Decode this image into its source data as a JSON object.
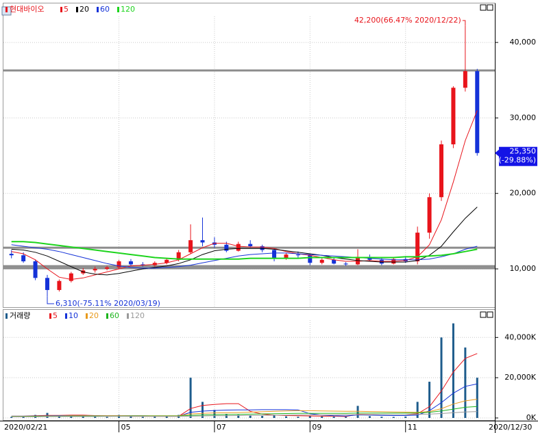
{
  "chart_data": [
    {
      "type": "candlestick",
      "title": "현대바이오",
      "open": [
        12000,
        11800,
        11000,
        8800,
        7200,
        8400,
        9400,
        9800,
        10000,
        10200,
        11000,
        10600,
        10500,
        10800,
        11200,
        12200,
        13800,
        13500,
        13200,
        12400,
        13300,
        13000,
        12500,
        11400,
        11900,
        11800,
        10800,
        11200,
        10700,
        10600,
        11600,
        11200,
        10700,
        11300,
        11000,
        14800,
        19500,
        26500,
        34000,
        36200
      ],
      "high": [
        12500,
        12200,
        11200,
        9200,
        8600,
        9600,
        10100,
        10300,
        10400,
        11200,
        11300,
        10900,
        11000,
        11400,
        12500,
        15900,
        16800,
        14200,
        13600,
        13600,
        13800,
        13200,
        12700,
        12100,
        12300,
        12000,
        11400,
        11500,
        10900,
        12600,
        11900,
        11400,
        11500,
        11700,
        15600,
        20000,
        27000,
        34200,
        42200,
        36500
      ],
      "low": [
        11400,
        10800,
        8500,
        6310,
        7000,
        8200,
        9200,
        9500,
        9800,
        10000,
        10400,
        10300,
        10300,
        10600,
        11000,
        12000,
        13000,
        12800,
        12200,
        12300,
        12800,
        12200,
        11000,
        11200,
        11500,
        10500,
        10600,
        10600,
        10400,
        10500,
        11000,
        10500,
        10600,
        10800,
        10600,
        14000,
        19000,
        26000,
        33500,
        25000
      ],
      "close": [
        11800,
        11000,
        8800,
        7200,
        8400,
        9400,
        9800,
        10000,
        10200,
        11000,
        10600,
        10500,
        10800,
        11200,
        12200,
        13800,
        13500,
        13200,
        12400,
        13300,
        13000,
        12500,
        11400,
        11900,
        11800,
        10800,
        11200,
        10700,
        10600,
        11600,
        11200,
        10700,
        11300,
        11000,
        14800,
        19500,
        26500,
        34000,
        36200,
        25350
      ],
      "up_color": "#e8141b",
      "down_color": "#1432d8",
      "series": [
        {
          "name": "5",
          "color": "#e8141b",
          "values": [
            12300,
            12000,
            11200,
            10000,
            8900,
            8600,
            8800,
            9200,
            9600,
            10000,
            10400,
            10500,
            10600,
            10800,
            11200,
            12000,
            12800,
            13400,
            13400,
            13000,
            12900,
            12900,
            12700,
            12300,
            12000,
            11800,
            11500,
            11200,
            11000,
            11000,
            11100,
            11000,
            11000,
            11100,
            11600,
            13200,
            16500,
            21500,
            27000,
            31000
          ]
        },
        {
          "name": "20",
          "color": "#000000",
          "values": [
            12600,
            12500,
            12200,
            11700,
            11000,
            10300,
            9600,
            9300,
            9200,
            9400,
            9700,
            10000,
            10200,
            10400,
            10700,
            11200,
            11900,
            12400,
            12600,
            12700,
            12700,
            12700,
            12600,
            12400,
            12200,
            12000,
            11800,
            11500,
            11300,
            11100,
            11000,
            10900,
            10900,
            10900,
            11100,
            11800,
            13000,
            14900,
            16700,
            18200
          ]
        },
        {
          "name": "60",
          "color": "#1432d8",
          "values": [
            13200,
            13000,
            12800,
            12600,
            12300,
            11900,
            11500,
            11100,
            10700,
            10400,
            10200,
            10100,
            10100,
            10200,
            10300,
            10500,
            10800,
            11100,
            11400,
            11700,
            11900,
            12000,
            12100,
            12100,
            12000,
            11900,
            11800,
            11700,
            11600,
            11500,
            11400,
            11300,
            11200,
            11200,
            11200,
            11300,
            11600,
            12000,
            12600,
            13000
          ]
        },
        {
          "name": "120",
          "color": "#1cd41c",
          "values": [
            13600,
            13600,
            13500,
            13300,
            13100,
            12900,
            12700,
            12500,
            12300,
            12100,
            11900,
            11700,
            11500,
            11400,
            11300,
            11300,
            11300,
            11300,
            11300,
            11300,
            11400,
            11400,
            11400,
            11400,
            11400,
            11500,
            11500,
            11500,
            11500,
            11500,
            11500,
            11500,
            11500,
            11600,
            11600,
            11700,
            11800,
            12000,
            12300,
            12600
          ]
        }
      ],
      "ylim": [
        4840,
        44900
      ],
      "yticks": [
        {
          "value": 10000,
          "label": "10,000"
        },
        {
          "value": 20000,
          "label": "20,000"
        },
        {
          "value": 30000,
          "label": "30,000"
        },
        {
          "value": 40000,
          "label": "40,000"
        }
      ],
      "grid": true,
      "hlines": [
        36290,
        12805,
        10360,
        10090
      ],
      "hline_color": "#8c8c8c",
      "annotations": [
        {
          "value": 42200,
          "label": "42,200(66.47% 2020/12/22)",
          "color": "#e8141b"
        },
        {
          "value": 6310,
          "label": "6,310(-75.11% 2020/03/19)",
          "color": "#1432d8"
        }
      ],
      "last_price": {
        "value": 25350,
        "label": "25,350",
        "change": "(-29.88%)"
      }
    },
    {
      "type": "bar",
      "title": "거래량",
      "categories": [
        "2020/02/21",
        null,
        null,
        null,
        null,
        null,
        null,
        null,
        null,
        "05",
        null,
        null,
        null,
        null,
        null,
        null,
        null,
        "07",
        null,
        null,
        null,
        null,
        null,
        null,
        null,
        "09",
        null,
        null,
        null,
        null,
        null,
        null,
        null,
        "11",
        null,
        null,
        null,
        null,
        null,
        "2020/12/30"
      ],
      "values": [
        500,
        800,
        1500,
        2500,
        1200,
        1000,
        800,
        600,
        500,
        1500,
        700,
        500,
        600,
        800,
        1500,
        20000,
        8000,
        4000,
        2000,
        1500,
        1200,
        1000,
        1500,
        800,
        600,
        1000,
        700,
        600,
        500,
        6000,
        900,
        600,
        500,
        700,
        8000,
        18000,
        40000,
        47000,
        35000,
        20000
      ],
      "color": "#1e5c8c",
      "series": [
        {
          "name": "5",
          "color": "#e8141b",
          "values": [
            900,
            900,
            1100,
            1300,
            1300,
            1400,
            1400,
            1200,
            800,
            900,
            800,
            800,
            800,
            800,
            800,
            4700,
            6200,
            6700,
            7100,
            7100,
            3300,
            1900,
            1400,
            1200,
            1100,
            1000,
            900,
            900,
            700,
            1800,
            1700,
            1700,
            1700,
            1700,
            2100,
            5600,
            13400,
            22800,
            29600,
            32000
          ]
        },
        {
          "name": "10",
          "color": "#1432d8",
          "values": [
            900,
            900,
            1000,
            1100,
            1200,
            1200,
            1200,
            1200,
            1100,
            1100,
            1100,
            1100,
            1000,
            900,
            900,
            2800,
            3400,
            3700,
            3900,
            4000,
            4000,
            4100,
            4100,
            4100,
            4000,
            2100,
            1400,
            1100,
            1000,
            1500,
            1400,
            1300,
            1200,
            1200,
            1400,
            3600,
            7600,
            12300,
            15700,
            16900
          ]
        },
        {
          "name": "20",
          "color": "#e89a1c",
          "values": [
            800,
            800,
            900,
            1000,
            1000,
            1100,
            1100,
            1100,
            1100,
            1100,
            1100,
            1100,
            1100,
            1100,
            1100,
            2000,
            2300,
            2500,
            2600,
            2700,
            2900,
            3100,
            3300,
            3500,
            3600,
            3600,
            3500,
            3400,
            3300,
            3300,
            3200,
            3100,
            3000,
            2900,
            2800,
            3200,
            4600,
            6900,
            8500,
            9300
          ]
        },
        {
          "name": "60",
          "color": "#1cb41c",
          "values": [
            700,
            700,
            800,
            800,
            800,
            900,
            900,
            900,
            900,
            900,
            1000,
            1000,
            1000,
            1000,
            1000,
            1300,
            1500,
            1600,
            1700,
            1800,
            1900,
            2000,
            2100,
            2200,
            2300,
            2300,
            2300,
            2300,
            2300,
            2400,
            2400,
            2400,
            2400,
            2400,
            2500,
            2800,
            3500,
            4400,
            5300,
            5700
          ]
        },
        {
          "name": "120",
          "color": "#9a9a9a",
          "values": [
            600,
            600,
            600,
            700,
            700,
            700,
            700,
            700,
            800,
            800,
            800,
            800,
            800,
            800,
            800,
            900,
            1000,
            1100,
            1100,
            1200,
            1300,
            1300,
            1400,
            1400,
            1500,
            1500,
            1500,
            1500,
            1600,
            1600,
            1600,
            1700,
            1700,
            1700,
            1800,
            1900,
            2200,
            2600,
            3000,
            3200
          ]
        }
      ],
      "ylim": [
        0,
        52000
      ],
      "yticks": [
        {
          "value": 0,
          "label": "0K"
        },
        {
          "value": 20000,
          "label": "20,000K"
        },
        {
          "value": 40000,
          "label": "40,000K"
        }
      ],
      "grid": true
    }
  ]
}
